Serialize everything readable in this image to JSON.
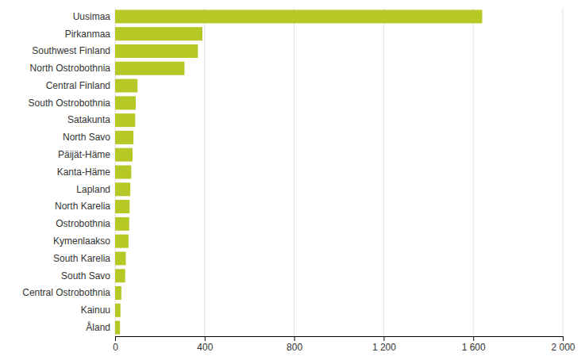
{
  "chart_data": {
    "type": "bar",
    "orientation": "horizontal",
    "categories": [
      "Uusimaa",
      "Pirkanmaa",
      "Southwest Finland",
      "North Ostrobothnia",
      "Central Finland",
      "South Ostrobothnia",
      "Satakunta",
      "North Savo",
      "Päijät-Häme",
      "Kanta-Häme",
      "Lapland",
      "North Karelia",
      "Ostrobothnia",
      "Kymenlaakso",
      "South Karelia",
      "South Savo",
      "Central Ostrobothnia",
      "Kainuu",
      "Åland"
    ],
    "values": [
      1640,
      390,
      370,
      310,
      100,
      92,
      90,
      82,
      78,
      72,
      68,
      65,
      63,
      60,
      48,
      45,
      28,
      24,
      22
    ],
    "color": "#b5c826",
    "xlim": [
      0,
      2000
    ],
    "xticks": [
      0,
      400,
      800,
      {
        "value": 1200,
        "label": "1 200"
      },
      {
        "value": 1600,
        "label": "1 600"
      },
      {
        "value": 2000,
        "label": "2 000"
      }
    ],
    "grid": true
  }
}
